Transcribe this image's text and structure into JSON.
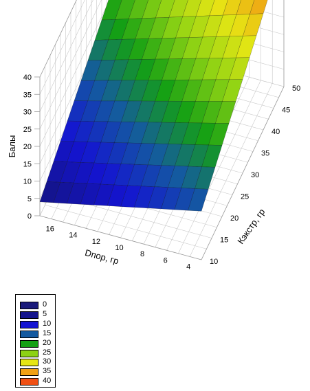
{
  "chart_data": {
    "type": "surface",
    "title": "",
    "zlabel": "Балы",
    "xlabel": "Dпор, гр",
    "ylabel": "Кэкстр, гр",
    "x_ticks": [
      16,
      14,
      12,
      10,
      8,
      6,
      4
    ],
    "y_ticks": [
      10,
      15,
      20,
      25,
      30,
      35,
      40,
      45,
      50
    ],
    "z_ticks": [
      0,
      5,
      10,
      15,
      20,
      25,
      30,
      35,
      40
    ],
    "xlim": [
      3,
      17
    ],
    "ylim": [
      10,
      50
    ],
    "zlim": [
      0,
      40
    ],
    "grid": true,
    "corner_values": [
      {
        "dpor": 17,
        "kextr": 10,
        "score": 4
      },
      {
        "dpor": 17,
        "kextr": 50,
        "score": 24
      },
      {
        "dpor": 3,
        "kextr": 10,
        "score": 14
      },
      {
        "dpor": 3,
        "kextr": 50,
        "score": 40
      }
    ],
    "legend": {
      "position": "bottom-left",
      "entries": [
        {
          "label": "0",
          "color": "#1a1a7a"
        },
        {
          "label": "5",
          "color": "#14148c"
        },
        {
          "label": "10",
          "color": "#1414d2"
        },
        {
          "label": "15",
          "color": "#145aa0"
        },
        {
          "label": "20",
          "color": "#14a014"
        },
        {
          "label": "25",
          "color": "#8cd214"
        },
        {
          "label": "30",
          "color": "#e6e614"
        },
        {
          "label": "35",
          "color": "#f0a014"
        },
        {
          "label": "40",
          "color": "#f05014"
        }
      ]
    }
  }
}
